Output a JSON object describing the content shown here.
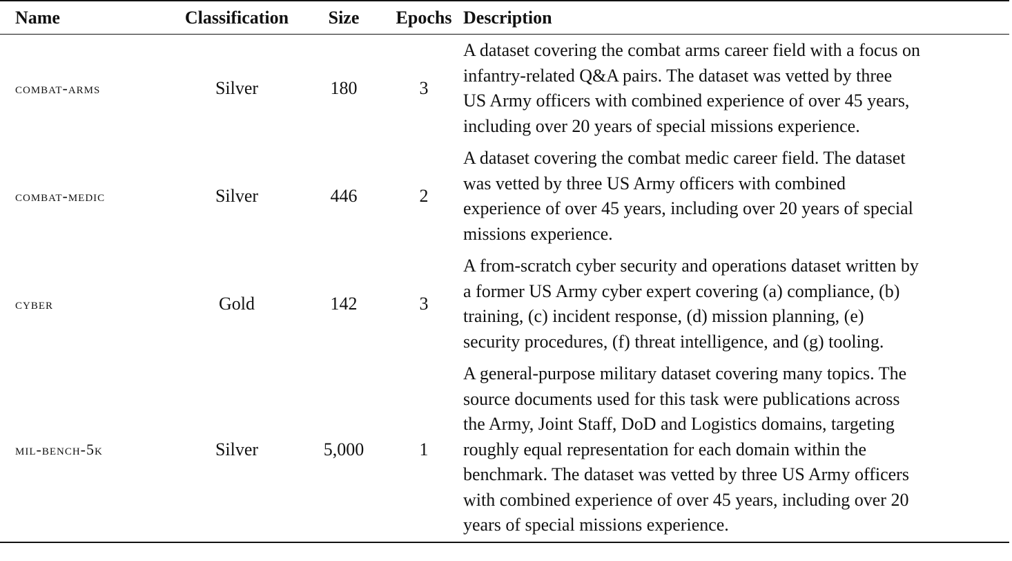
{
  "columns": [
    "Name",
    "Classification",
    "Size",
    "Epochs",
    "Description"
  ],
  "rows": [
    {
      "name": "combat-arms",
      "classification": "Silver",
      "size": "180",
      "epochs": "3",
      "description": [
        "A dataset covering the combat arms career field with a focus on",
        "infantry-related Q&A pairs. The dataset was vetted by three",
        "US Army officers with combined experience of over 45 years,",
        "including over 20 years of special missions experience."
      ]
    },
    {
      "name": "combat-medic",
      "classification": "Silver",
      "size": "446",
      "epochs": "2",
      "description": [
        "A dataset covering the combat medic career field. The dataset",
        "was vetted by three US Army officers with combined",
        "experience of over 45 years, including over 20 years of special",
        "missions experience."
      ]
    },
    {
      "name": "cyber",
      "classification": "Gold",
      "size": "142",
      "epochs": "3",
      "description": [
        "A from-scratch cyber security and operations dataset written by",
        "a former US Army cyber expert covering (a) compliance, (b)",
        "training, (c) incident response, (d) mission planning, (e)",
        "security procedures, (f) threat intelligence, and (g) tooling."
      ]
    },
    {
      "name": "mil-bench-5k",
      "classification": "Silver",
      "size": "5,000",
      "epochs": "1",
      "description": [
        "A general-purpose military dataset covering many topics. The",
        "source documents used for this task were publications across",
        "the Army, Joint Staff, DoD and Logistics domains, targeting",
        "roughly equal representation for each domain within the",
        "benchmark. The dataset was vetted by three US Army officers",
        "with combined experience of over 45 years, including over 20",
        "years of special missions experience."
      ]
    }
  ]
}
